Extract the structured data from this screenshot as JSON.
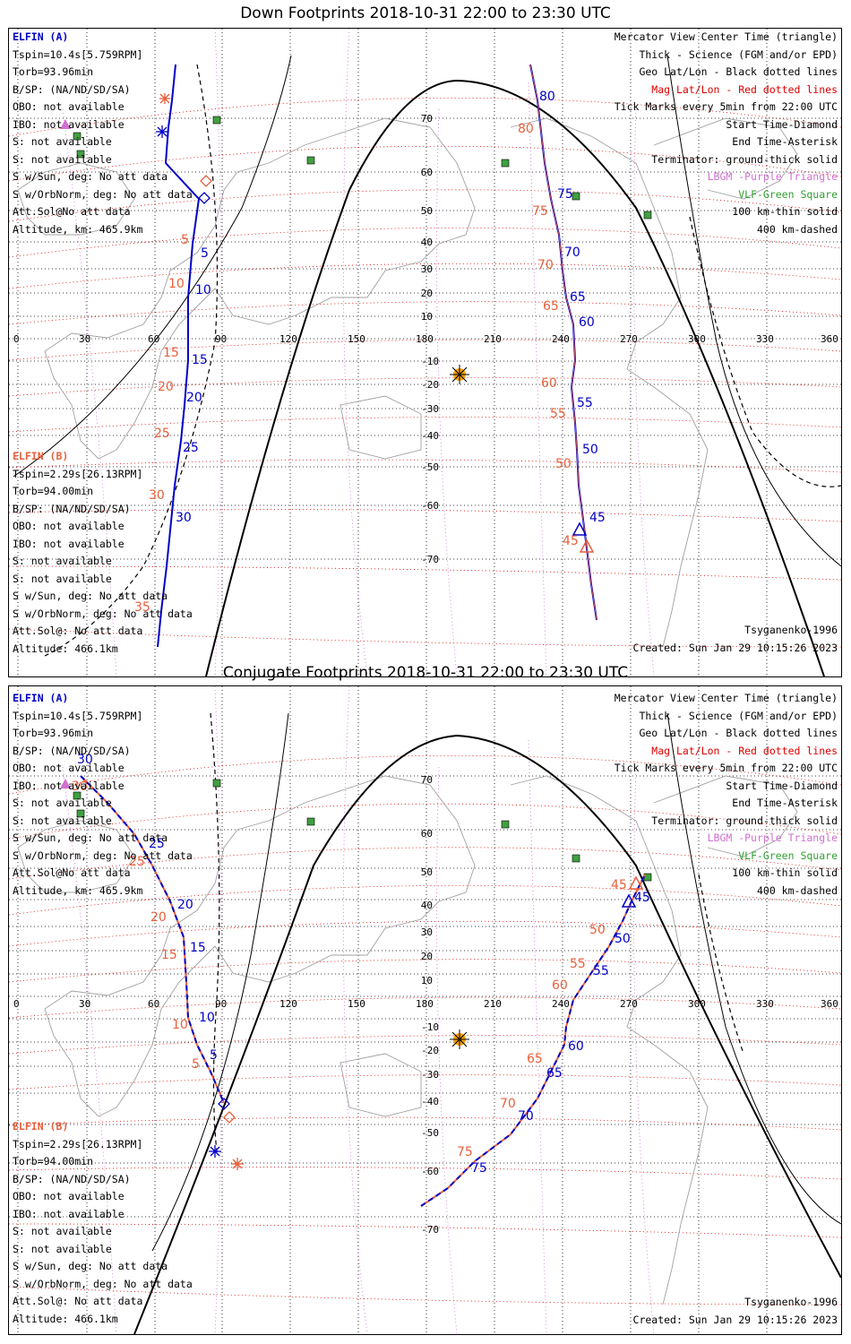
{
  "panels": [
    {
      "title": "Down Footprints 2018-10-31 22:00 to 23:30 UTC",
      "elfin_a": [
        "ELFIN (A)",
        "Tspin=10.4s[5.759RPM]",
        "Torb=93.96min",
        "B/SP: (NA/ND/SD/SA)",
        "OBO: not available",
        "IBO: not available",
        "S: not available",
        "S: not available",
        "S w/Sun, deg: No att data",
        "S w/OrbNorm, deg: No att data",
        "Att.Sol@No att data",
        "Altitude, km: 465.9km"
      ],
      "elfin_b": [
        "ELFIN (B)",
        "Tspin=2.29s[26.13RPM]",
        "Torb=94.00min",
        "B/SP: (NA/ND/SD/SA)",
        "OBO: not available",
        "IBO: not available",
        "S: not available",
        "S: not available",
        "S w/Sun, deg: No att data",
        "S w/OrbNorm, deg: No att data",
        "Att.Sol@: No att data",
        "Altitude: 466.1km"
      ],
      "legend": [
        "Mercator View Center Time (triangle)",
        "Thick - Science (FGM and/or EPD)",
        "Geo Lat/Lon - Black dotted lines",
        "Mag Lat/Lon - Red dotted lines",
        "Tick Marks every 5min from 22:00 UTC",
        "Start Time-Diamond",
        "End Time-Asterisk",
        "Terminator: ground-thick solid",
        "LBGM -Purple Triangle",
        "VLF-Green Square",
        "100 km-thin solid",
        "400 km-dashed"
      ],
      "model": "Tsyganenko-1996",
      "created": "Created: Sun Jan 29 10:15:26 2023",
      "traceA": [
        [
          -40,
          40,
          84
        ],
        [
          -30,
          40,
          82
        ],
        [
          -20,
          40,
          81
        ],
        [
          -10,
          40,
          80
        ],
        [
          -5,
          40,
          77
        ],
        [
          5,
          40,
          73
        ],
        [
          15,
          40,
          68
        ],
        [
          25,
          40,
          60
        ],
        [
          35,
          40,
          50
        ],
        [
          45,
          40,
          40
        ],
        [
          55,
          40,
          25
        ],
        [
          60,
          40,
          18
        ],
        [
          62,
          40,
          5
        ],
        [
          63,
          40,
          -10
        ],
        [
          62,
          40,
          -25
        ],
        [
          60,
          40,
          -38
        ],
        [
          57,
          40,
          -50
        ],
        [
          52,
          40,
          -62
        ],
        [
          40,
          40,
          -75
        ]
      ],
      "traceB": [
        [
          -90,
          40,
          85
        ],
        [
          -86,
          40,
          80
        ],
        [
          -84,
          40,
          73
        ],
        [
          -84,
          40,
          65
        ],
        [
          -83,
          40,
          55
        ],
        [
          -83,
          40,
          45
        ],
        [
          -82,
          40,
          35
        ],
        [
          -80,
          40,
          25
        ],
        [
          -79,
          40,
          15
        ],
        [
          -78,
          40,
          5
        ],
        [
          -76,
          40,
          -10
        ],
        [
          -75,
          40,
          -25
        ],
        [
          -73,
          40,
          -40
        ],
        [
          -71,
          40,
          -55
        ],
        [
          -68,
          40,
          -68
        ],
        [
          -65,
          40,
          -78
        ]
      ]
    },
    {
      "title": "Conjugate Footprints 2018-10-31 22:00 to 23:30 UTC",
      "elfin_a": [
        "ELFIN (A)",
        "Tspin=10.4s[5.759RPM]",
        "Torb=93.96min",
        "B/SP: (NA/ND/SD/SA)",
        "OBO: not available",
        "IBO: not available",
        "S: not available",
        "S: not available",
        "S w/Sun, deg: No att data",
        "S w/OrbNorm, deg: No att data",
        "Att.Sol@No att data",
        "Altitude, km: 465.9km"
      ],
      "elfin_b": [
        "ELFIN (B)",
        "Tspin=2.29s[26.13RPM]",
        "Torb=94.00min",
        "B/SP: (NA/ND/SD/SA)",
        "OBO: not available",
        "IBO: not available",
        "S: not available",
        "S: not available",
        "S w/Sun, deg: No att data",
        "S w/OrbNorm, deg: No att data",
        "Att.Sol@: No att data",
        "Altitude: 466.1km"
      ],
      "legend": [
        "Mercator View Center Time (triangle)",
        "Thick - Science (FGM and/or EPD)",
        "Geo Lat/Lon - Black dotted lines",
        "Mag Lat/Lon - Red dotted lines",
        "Tick Marks every 5min from 22:00 UTC",
        "Start Time-Diamond",
        "End Time-Asterisk",
        "Terminator: ground-thick solid",
        "LBGM -Purple Triangle",
        "VLF-Green Square",
        "100 km-thin solid",
        "400 km-dashed"
      ],
      "model": "Tsyganenko-1996",
      "created": "Created: Sun Jan 29 10:15:26 2023"
    }
  ],
  "axes": {
    "lon_ticks": [
      "0",
      "30",
      "60",
      "90",
      "120",
      "150",
      "180",
      "210",
      "240",
      "270",
      "300",
      "330",
      "360"
    ],
    "lat_ticks": [
      "70",
      "60",
      "50",
      "40",
      "30",
      "20",
      "10",
      "-10",
      "-20",
      "-30",
      "-40",
      "-50",
      "-60",
      "-70"
    ]
  },
  "down_labels": {
    "a_blue": [
      "5",
      "10",
      "15",
      "20",
      "25",
      "30"
    ],
    "a_orange": [
      "5",
      "10",
      "15",
      "20",
      "25",
      "30",
      "35"
    ],
    "b_blue": [
      "80",
      "75",
      "70",
      "65",
      "60",
      "55",
      "50",
      "45"
    ],
    "b_orange": [
      "80",
      "75",
      "70",
      "65",
      "60",
      "55",
      "50",
      "45"
    ]
  },
  "conj_labels": {
    "a_blue": [
      "30",
      "25",
      "20",
      "15",
      "10",
      "5"
    ],
    "a_orange": [
      "30",
      "25",
      "20",
      "15",
      "10",
      "5"
    ],
    "b_blue": [
      "45",
      "50",
      "55",
      "60",
      "65",
      "70",
      "75"
    ],
    "b_orange": [
      "45",
      "50",
      "55",
      "60",
      "65",
      "70",
      "75"
    ]
  },
  "colors": {
    "blue": "#0000c8",
    "orange": "#e8603c",
    "red_grid": "#e00000",
    "purple": "#d070d0",
    "green": "#30a030",
    "land": "#a0a0a0"
  }
}
